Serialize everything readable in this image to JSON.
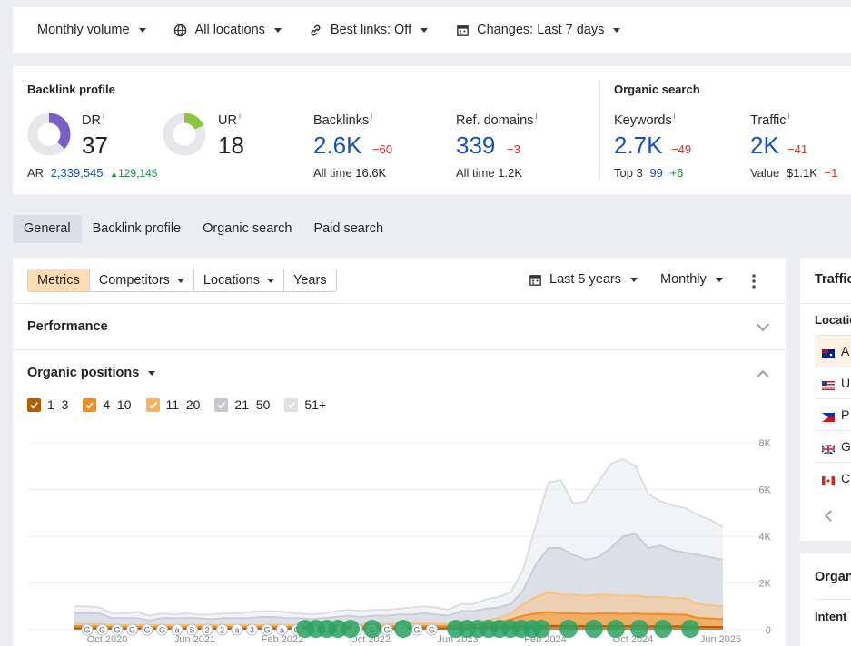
{
  "filters": {
    "volume": "Monthly volume",
    "locations": "All locations",
    "best_links": "Best links: Off",
    "changes": "Changes: Last 7 days"
  },
  "backlink_profile": {
    "title": "Backlink profile",
    "dr": {
      "label": "DR",
      "value": "37",
      "fraction": 0.37,
      "color": "#7a5fc8"
    },
    "ur": {
      "label": "UR",
      "value": "18",
      "fraction": 0.18,
      "color": "#8cc63f"
    },
    "ar": {
      "label": "AR",
      "value": "2,339,545",
      "delta": "129,145"
    },
    "backlinks": {
      "label": "Backlinks",
      "value": "2.6K",
      "delta": "−60",
      "sub_label": "All time",
      "sub_value": "16.6K"
    },
    "ref_domains": {
      "label": "Ref. domains",
      "value": "339",
      "delta": "−3",
      "sub_label": "All time",
      "sub_value": "1.2K"
    }
  },
  "organic_search": {
    "title": "Organic search",
    "keywords": {
      "label": "Keywords",
      "value": "2.7K",
      "delta": "−49",
      "sub_label": "Top 3",
      "sub_value": "99",
      "sub_delta": "+6"
    },
    "traffic": {
      "label": "Traffic",
      "value": "2K",
      "delta": "−41",
      "sub_label": "Value",
      "sub_value": "$1.1K",
      "sub_delta": "−1"
    }
  },
  "info_marker": "i",
  "tabs": [
    "General",
    "Backlink profile",
    "Organic search",
    "Paid search"
  ],
  "toolbar": {
    "metrics": "Metrics",
    "competitors": "Competitors",
    "locations": "Locations",
    "years": "Years",
    "range": "Last 5 years",
    "interval": "Monthly"
  },
  "sections": {
    "performance": "Performance",
    "organic_positions": "Organic positions"
  },
  "legend": [
    {
      "label": "1–3",
      "color": "#b85c00"
    },
    {
      "label": "4–10",
      "color": "#f28c1e"
    },
    {
      "label": "11–20",
      "color": "#f7b25c"
    },
    {
      "label": "21–50",
      "color": "#c3c8d2"
    },
    {
      "label": "51+",
      "color": "#dde0e6"
    }
  ],
  "chart_data": {
    "type": "area",
    "title": "Organic positions",
    "x_ticks": [
      "Oct 2020",
      "Jun 2021",
      "Feb 2022",
      "Oct 2022",
      "Jun 2023",
      "Feb 2024",
      "Oct 2024",
      "Jun 2025"
    ],
    "y_ticks": [
      "8K",
      "6K",
      "4K",
      "2K",
      "0"
    ],
    "ylim": [
      0,
      8000
    ],
    "x": [
      0,
      1,
      2,
      3,
      4,
      5,
      6,
      7,
      8,
      9,
      10,
      11,
      12,
      13,
      14,
      15,
      16,
      17,
      18,
      19,
      20,
      21,
      22,
      23,
      24,
      25,
      26,
      27,
      28,
      29,
      30,
      31,
      32,
      33,
      34,
      35,
      36,
      37,
      38,
      39,
      40,
      41,
      42,
      43,
      44,
      45,
      46,
      47,
      48,
      49,
      50,
      51,
      52
    ],
    "series": [
      {
        "name": "51+",
        "values": [
          1000,
          1000,
          950,
          700,
          700,
          750,
          600,
          700,
          650,
          700,
          650,
          650,
          700,
          700,
          750,
          800,
          800,
          750,
          700,
          650,
          700,
          800,
          850,
          800,
          850,
          850,
          900,
          950,
          1000,
          950,
          850,
          1100,
          1100,
          1300,
          1400,
          1600,
          2600,
          4500,
          6300,
          6400,
          5400,
          5500,
          6300,
          7100,
          7300,
          7000,
          5800,
          5500,
          5300,
          5200,
          4900,
          4700,
          4400
        ],
        "color": "#e8eaef"
      },
      {
        "name": "21–50",
        "values": [
          700,
          700,
          700,
          500,
          500,
          500,
          400,
          500,
          500,
          500,
          500,
          450,
          500,
          500,
          500,
          550,
          550,
          500,
          500,
          450,
          500,
          550,
          600,
          550,
          600,
          600,
          650,
          650,
          700,
          650,
          600,
          800,
          800,
          900,
          950,
          1100,
          1700,
          2800,
          3500,
          3500,
          3200,
          3000,
          3100,
          3500,
          4000,
          4100,
          3500,
          3600,
          3400,
          3300,
          3200,
          3100,
          3000
        ],
        "color": "#c8ccd5"
      },
      {
        "name": "11–20",
        "values": [
          250,
          250,
          250,
          200,
          200,
          200,
          200,
          200,
          200,
          200,
          200,
          200,
          200,
          200,
          200,
          200,
          220,
          200,
          200,
          200,
          200,
          220,
          230,
          220,
          230,
          240,
          250,
          260,
          270,
          260,
          250,
          300,
          320,
          400,
          500,
          700,
          1100,
          1400,
          1600,
          1500,
          1500,
          1450,
          1500,
          1500,
          1450,
          1450,
          1400,
          1400,
          1350,
          1350,
          1100,
          1050,
          1000
        ],
        "color": "#f9c27f"
      },
      {
        "name": "4–10",
        "values": [
          150,
          150,
          150,
          120,
          120,
          120,
          120,
          120,
          120,
          120,
          120,
          120,
          120,
          120,
          120,
          120,
          130,
          120,
          120,
          120,
          120,
          130,
          140,
          130,
          140,
          140,
          150,
          150,
          160,
          150,
          150,
          180,
          190,
          250,
          300,
          450,
          600,
          700,
          750,
          700,
          700,
          680,
          690,
          700,
          680,
          690,
          670,
          670,
          650,
          640,
          500,
          480,
          450
        ],
        "color": "#f28c1e"
      },
      {
        "name": "1–3",
        "values": [
          60,
          60,
          60,
          50,
          50,
          50,
          50,
          50,
          50,
          50,
          50,
          50,
          50,
          50,
          50,
          50,
          55,
          50,
          50,
          50,
          50,
          55,
          60,
          55,
          60,
          60,
          60,
          65,
          70,
          65,
          60,
          70,
          75,
          90,
          100,
          120,
          140,
          150,
          160,
          160,
          150,
          150,
          150,
          150,
          150,
          150,
          140,
          140,
          140,
          140,
          120,
          115,
          110
        ],
        "color": "#b85c00"
      }
    ],
    "markers": [
      "G",
      "G",
      "G",
      "G",
      "G",
      "G",
      "a",
      "S",
      "2",
      "2",
      "a",
      "3",
      "G",
      "a",
      "G",
      "G",
      "G",
      "2",
      "2",
      "G",
      "G",
      "2",
      "G",
      "G"
    ],
    "grid": true
  },
  "side_panel": {
    "title": "Traffic",
    "sub_title": "Locations",
    "countries": [
      "A",
      "U",
      "P",
      "G",
      "C"
    ],
    "lower_title": "Organic",
    "lower_row": "Intent"
  }
}
